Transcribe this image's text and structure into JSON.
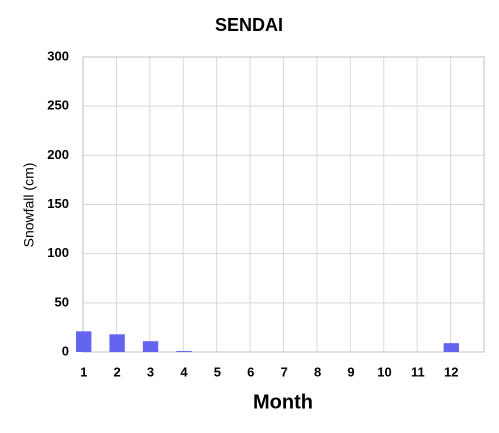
{
  "chart_data": {
    "type": "bar",
    "title": "SENDAI",
    "x_label": "Month",
    "y_label": "Snowfall (cm)",
    "categories": [
      "1",
      "2",
      "3",
      "4",
      "5",
      "6",
      "7",
      "8",
      "9",
      "10",
      "11",
      "12"
    ],
    "values": [
      21,
      18,
      11,
      1,
      0,
      0,
      0,
      0,
      0,
      0,
      0,
      9
    ],
    "color": "#6464f0",
    "ylim": [
      0,
      300
    ],
    "yticks": [
      0,
      50,
      100,
      150,
      200,
      250,
      300
    ],
    "grid": true
  }
}
